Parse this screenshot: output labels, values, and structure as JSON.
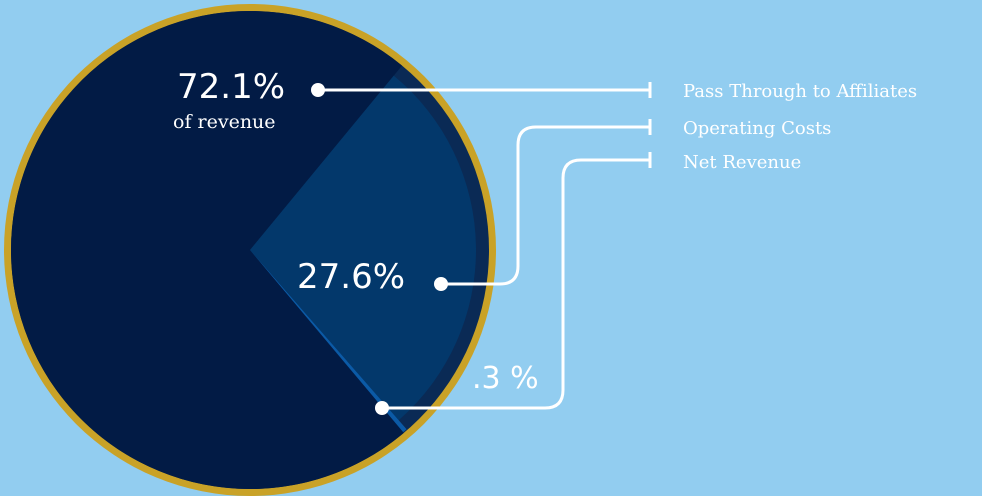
{
  "chart_data": {
    "type": "pie",
    "categories": [
      "Pass Through to Affiliates",
      "Operating Costs",
      "Net Revenue"
    ],
    "values": [
      72.1,
      27.6,
      0.3
    ],
    "labels": [
      "72.1%",
      "27.6%",
      ".3 %"
    ],
    "sublabel": "of revenue",
    "legend_position": "right"
  },
  "colors": {
    "background": "#92cdf0",
    "rim": "#c9a227",
    "slice_affiliates": "#021b45",
    "slice_operating": "#03386b",
    "slice_net": "#0b5aa6",
    "leader": "#ffffff"
  }
}
